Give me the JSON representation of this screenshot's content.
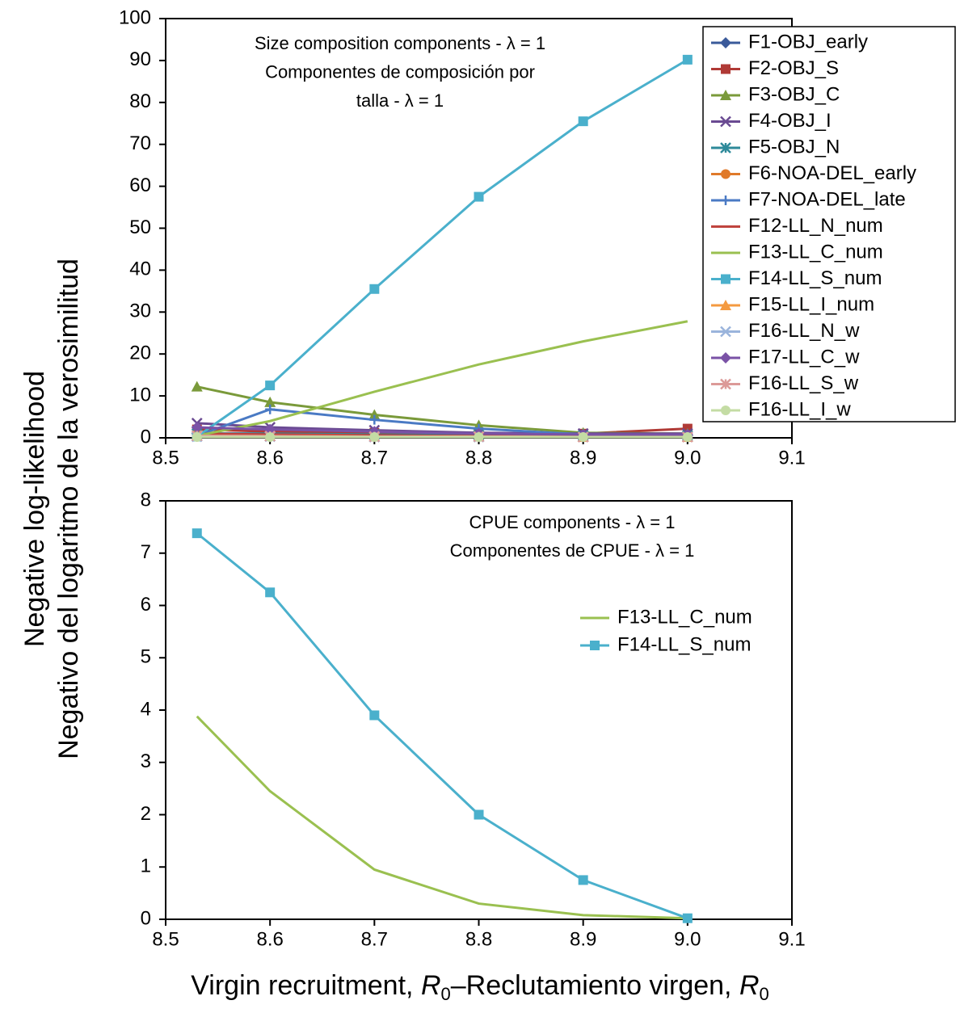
{
  "chart_data": [
    {
      "type": "line",
      "annotation": [
        "Size composition components - λ = 1",
        "Componentes de composición por",
        "talla - λ = 1"
      ],
      "ylabel": [
        "Negative log-likelihood",
        "Negativo del logaritmo de la verosimilitud"
      ],
      "x": [
        8.53,
        8.6,
        8.7,
        8.8,
        8.9,
        9.0
      ],
      "xlim": [
        8.5,
        9.1
      ],
      "xticks": [
        8.5,
        8.6,
        8.7,
        8.8,
        8.9,
        {
          "value": 9.0,
          "label": "9.0"
        },
        9.1
      ],
      "ylim": [
        0,
        100
      ],
      "yticks": [
        0,
        10,
        20,
        30,
        40,
        50,
        60,
        70,
        80,
        90,
        100
      ],
      "legend": "upper right boxed",
      "series": [
        {
          "name": "F1-OBJ_early",
          "color": "#3a5a9a",
          "marker": "diamond",
          "values": [
            1.0,
            1.0,
            0.8,
            0.6,
            0.5,
            0.5
          ]
        },
        {
          "name": "F2-OBJ_S",
          "color": "#b03a36",
          "marker": "square",
          "values": [
            2.0,
            1.5,
            1.2,
            1.0,
            1.0,
            2.2
          ]
        },
        {
          "name": "F3-OBJ_C",
          "color": "#7a9a3a",
          "marker": "triangle",
          "values": [
            12.2,
            8.5,
            5.5,
            3.0,
            1.2,
            1.0
          ]
        },
        {
          "name": "F4-OBJ_I",
          "color": "#6a4a92",
          "marker": "x",
          "values": [
            3.5,
            2.5,
            1.8,
            1.2,
            1.0,
            1.0
          ]
        },
        {
          "name": "F5-OBJ_N",
          "color": "#2e8a9a",
          "marker": "star",
          "values": [
            1.0,
            1.0,
            0.8,
            0.6,
            0.5,
            0.5
          ]
        },
        {
          "name": "F6-NOA-DEL_early",
          "color": "#e07a2a",
          "marker": "circle",
          "values": [
            0.8,
            0.6,
            0.5,
            0.4,
            0.3,
            0.3
          ]
        },
        {
          "name": "F7-NOA-DEL_late",
          "color": "#4a7ac4",
          "marker": "plus",
          "values": [
            0.5,
            6.8,
            4.3,
            2.2,
            0.8,
            0.5
          ]
        },
        {
          "name": "F12-LL_N_num",
          "color": "#c0443e",
          "marker": "none",
          "values": [
            1.0,
            0.8,
            0.6,
            0.4,
            0.3,
            0.3
          ]
        },
        {
          "name": "F13-LL_C_num",
          "color": "#9ac050",
          "marker": "none",
          "values": [
            0.5,
            4.0,
            11.0,
            17.5,
            23.0,
            27.8
          ]
        },
        {
          "name": "F14-LL_S_num",
          "color": "#4ab0cc",
          "marker": "square",
          "values": [
            0.3,
            12.5,
            35.5,
            57.5,
            75.5,
            90.2
          ]
        },
        {
          "name": "F15-LL_I_num",
          "color": "#f49a40",
          "marker": "triangle",
          "values": [
            0.5,
            0.4,
            0.3,
            0.3,
            0.2,
            0.2
          ]
        },
        {
          "name": "F16-LL_N_w",
          "color": "#9ab4dc",
          "marker": "x",
          "values": [
            0.3,
            0.3,
            0.2,
            0.2,
            0.2,
            0.2
          ]
        },
        {
          "name": "F17-LL_C_w",
          "color": "#7a52a6",
          "marker": "diamond",
          "values": [
            2.5,
            2.0,
            1.5,
            1.0,
            0.8,
            0.8
          ]
        },
        {
          "name": "F16-LL_S_w",
          "color": "#dc9a98",
          "marker": "star",
          "values": [
            0.5,
            0.4,
            0.3,
            0.3,
            0.2,
            0.2
          ]
        },
        {
          "name": "F16-LL_I_w",
          "color": "#c4dca4",
          "marker": "circle",
          "values": [
            0.2,
            0.2,
            0.2,
            0.2,
            0.2,
            0.2
          ]
        }
      ]
    },
    {
      "type": "line",
      "annotation": [
        "CPUE components - λ = 1",
        "Componentes de CPUE - λ = 1"
      ],
      "xlabel": [
        "Virgin recruitment, ",
        "R",
        "0",
        "–Reclutamiento virgen, ",
        "R",
        "0"
      ],
      "x": [
        8.53,
        8.6,
        8.7,
        8.8,
        8.9,
        9.0
      ],
      "xlim": [
        8.5,
        9.1
      ],
      "xticks": [
        8.5,
        8.6,
        8.7,
        8.8,
        8.9,
        {
          "value": 9.0,
          "label": "9.0"
        },
        9.1
      ],
      "ylim": [
        0,
        8
      ],
      "yticks": [
        0,
        1,
        2,
        3,
        4,
        5,
        6,
        7,
        8
      ],
      "legend": "center right",
      "series": [
        {
          "name": "F13-LL_C_num",
          "color": "#9ac050",
          "marker": "none",
          "values": [
            3.88,
            2.45,
            0.95,
            0.3,
            0.08,
            0.02
          ]
        },
        {
          "name": "F14-LL_S_num",
          "color": "#4ab0cc",
          "marker": "square",
          "values": [
            7.38,
            6.25,
            3.9,
            2.0,
            0.75,
            0.02
          ]
        }
      ]
    }
  ]
}
